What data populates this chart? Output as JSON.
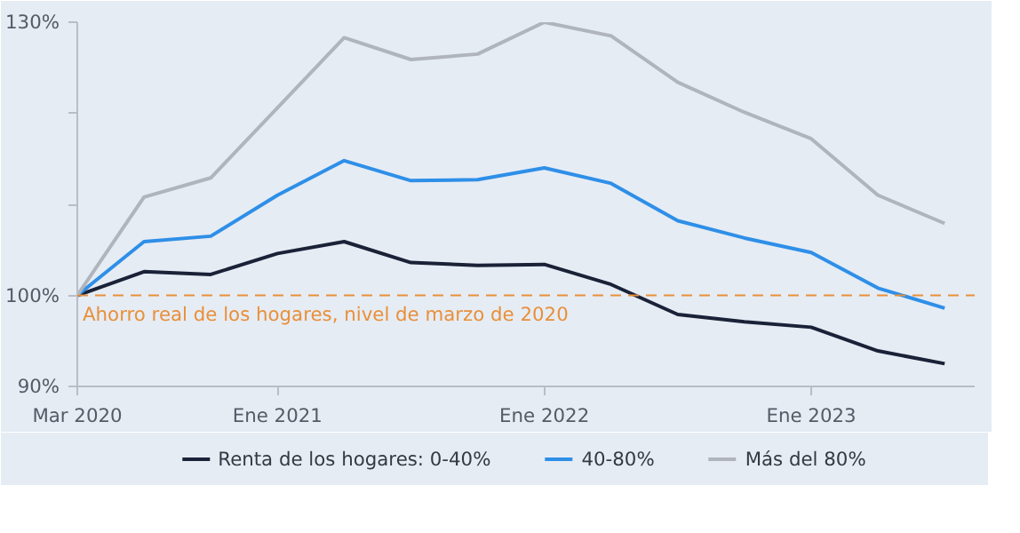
{
  "chart_data": {
    "type": "line",
    "categories": [
      "Mar 2020",
      null,
      null,
      "Ene 2021",
      null,
      null,
      null,
      "Ene 2022",
      null,
      null,
      null,
      "Ene 2023",
      null,
      null
    ],
    "series": [
      {
        "name": "Renta de los hogares: 0-40%",
        "color": "#1a2238",
        "values": [
          100,
          102.6,
          102.3,
          104.6,
          105.9,
          103.6,
          103.3,
          103.4,
          101.2,
          97.9,
          97.1,
          96.5,
          93.9,
          92.5
        ]
      },
      {
        "name": "40-80%",
        "color": "#2e8fe8",
        "values": [
          100,
          105.9,
          106.5,
          111.0,
          114.8,
          112.6,
          112.7,
          114.0,
          112.3,
          108.2,
          106.3,
          104.7,
          100.8,
          98.6
        ]
      },
      {
        "name": "Más del 80%",
        "color": "#b0b4bc",
        "values": [
          100,
          110.8,
          112.9,
          120.6,
          128.3,
          125.9,
          126.5,
          130.0,
          128.5,
          123.4,
          120.1,
          117.2,
          111.0,
          107.9
        ]
      }
    ],
    "ylim": [
      90,
      130
    ],
    "yticks": [
      {
        "value": 90,
        "label": "90%"
      },
      {
        "value": 100,
        "label": "100%"
      },
      {
        "value": 110,
        "label": null
      },
      {
        "value": 120,
        "label": null
      },
      {
        "value": 130,
        "label": "130%"
      }
    ],
    "ref_lines": [
      {
        "axis": "y",
        "value": 100,
        "label": "Ahorro real de los hogares, nivel de marzo de 2020",
        "color": "#e8903a",
        "line_style": "dashed"
      }
    ],
    "grid": false,
    "legend": "bottom",
    "marker": "none",
    "line_style": "solid"
  }
}
